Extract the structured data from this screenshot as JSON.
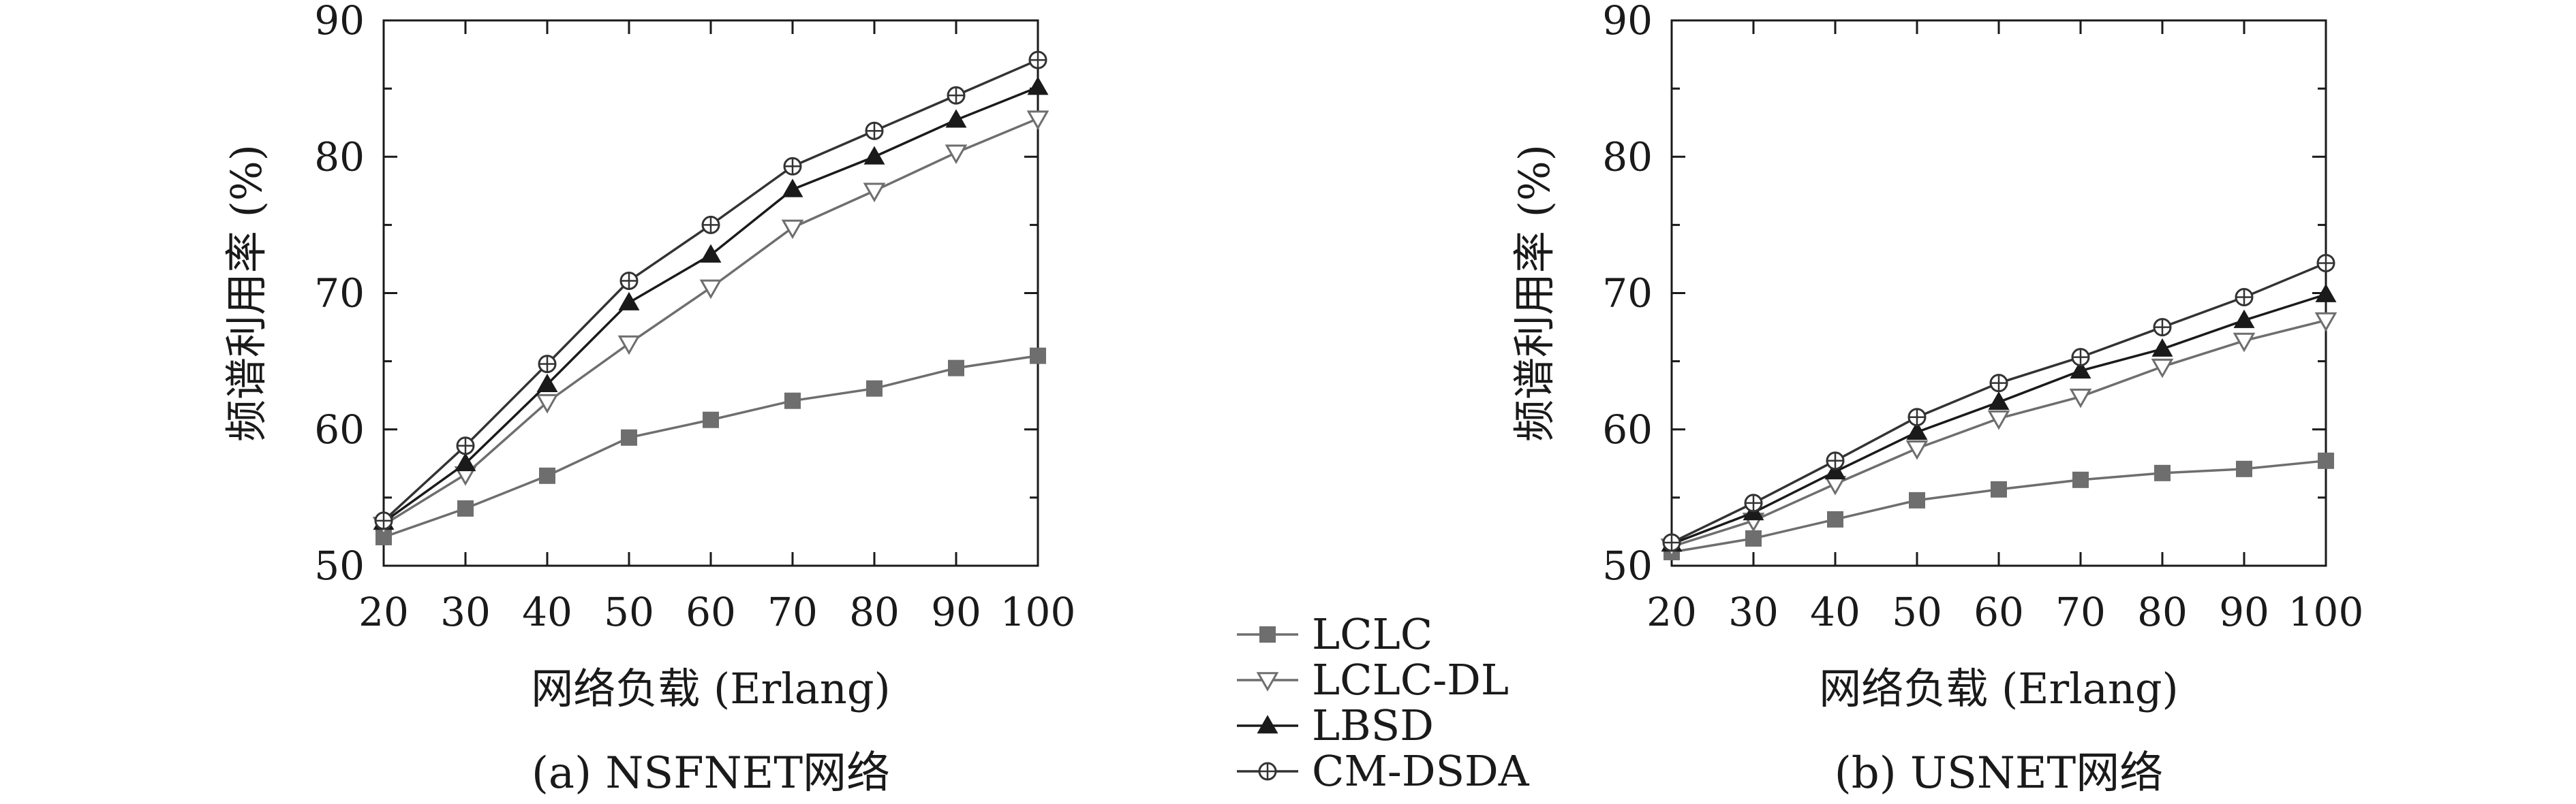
{
  "chart_data": [
    {
      "type": "line",
      "caption": "(a) NSFNET网络",
      "xlabel": "网络负载 (Erlang)",
      "ylabel": "频谱利用率 (%)",
      "x": [
        20,
        30,
        40,
        50,
        60,
        70,
        80,
        90,
        100
      ],
      "xlim": [
        20,
        100
      ],
      "ylim": [
        50,
        90
      ],
      "yticks": [
        50,
        60,
        70,
        80,
        90
      ],
      "grid": false,
      "series": [
        {
          "name": "LCLC",
          "values": [
            52.1,
            54.2,
            56.6,
            59.4,
            60.7,
            62.1,
            63.0,
            64.5,
            65.4
          ]
        },
        {
          "name": "LCLC-DL",
          "values": [
            53.0,
            56.7,
            62.0,
            66.3,
            70.4,
            74.8,
            77.5,
            80.3,
            82.8
          ]
        },
        {
          "name": "LBSD",
          "values": [
            53.2,
            57.5,
            63.3,
            69.3,
            72.8,
            77.6,
            80.0,
            82.7,
            85.1
          ]
        },
        {
          "name": "CM-DSDA",
          "values": [
            53.3,
            58.8,
            64.8,
            70.9,
            75.0,
            79.3,
            81.9,
            84.5,
            87.1
          ]
        }
      ]
    },
    {
      "type": "line",
      "caption": "(b) USNET网络",
      "xlabel": "网络负载 (Erlang)",
      "ylabel": "频谱利用率 (%)",
      "x": [
        20,
        30,
        40,
        50,
        60,
        70,
        80,
        90,
        100
      ],
      "xlim": [
        20,
        100
      ],
      "ylim": [
        50,
        90
      ],
      "yticks": [
        50,
        60,
        70,
        80,
        90
      ],
      "grid": false,
      "series": [
        {
          "name": "LCLC",
          "values": [
            51.0,
            52.0,
            53.4,
            54.8,
            55.6,
            56.3,
            56.8,
            57.1,
            57.7
          ]
        },
        {
          "name": "LCLC-DL",
          "values": [
            51.4,
            53.3,
            56.0,
            58.6,
            60.8,
            62.4,
            64.6,
            66.5,
            68.0
          ]
        },
        {
          "name": "LBSD",
          "values": [
            51.6,
            53.9,
            56.9,
            59.8,
            62.0,
            64.3,
            65.9,
            68.0,
            69.9
          ]
        },
        {
          "name": "CM-DSDA",
          "values": [
            51.7,
            54.6,
            57.7,
            60.9,
            63.4,
            65.3,
            67.5,
            69.7,
            72.2
          ]
        }
      ]
    }
  ],
  "legend": {
    "placement": "bottom-center",
    "entries": [
      {
        "name": "LCLC",
        "marker": "square",
        "color": "#6e6e6e"
      },
      {
        "name": "LCLC-DL",
        "marker": "triangle-down",
        "color": "#6e6e6e"
      },
      {
        "name": "LBSD",
        "marker": "triangle-up",
        "color": "#1a1a1a"
      },
      {
        "name": "CM-DSDA",
        "marker": "circle-plus",
        "color": "#333333"
      }
    ]
  }
}
